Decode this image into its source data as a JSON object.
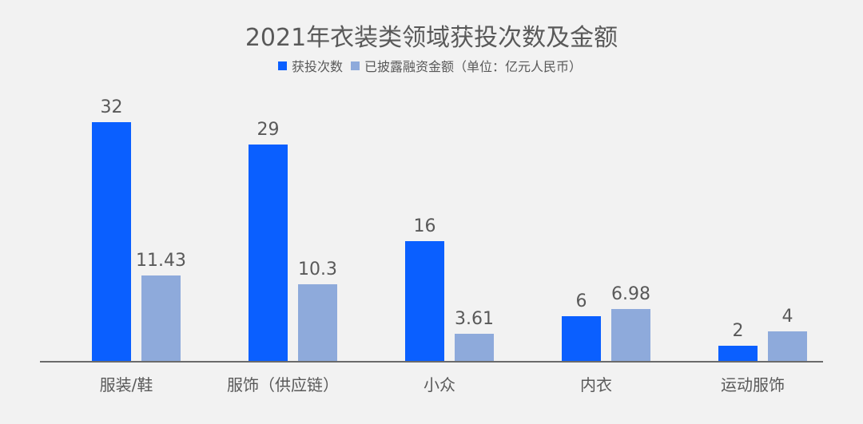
{
  "title": "2021年衣装类领域获投次数及金额",
  "legend": [
    {
      "label": "获投次数",
      "color": "#0a5fff"
    },
    {
      "label": "已披露融资金额（单位：亿元人民币）",
      "color": "#8eaadb"
    }
  ],
  "chart_data": {
    "type": "bar",
    "title": "2021年衣装类领域获投次数及金额",
    "xlabel": "",
    "ylabel": "",
    "categories": [
      "服装/鞋",
      "服饰（供应链）",
      "小众",
      "内衣",
      "运动服饰"
    ],
    "series": [
      {
        "name": "获投次数",
        "color": "#0a5fff",
        "values": [
          32,
          29,
          16,
          6,
          2
        ]
      },
      {
        "name": "已披露融资金额（单位：亿元人民币）",
        "color": "#8eaadb",
        "values": [
          11.43,
          10.3,
          3.61,
          6.98,
          4
        ]
      }
    ],
    "value_labels": [
      [
        "32",
        "29",
        "16",
        "6",
        "2"
      ],
      [
        "11.43",
        "10.3",
        "3.61",
        "6.98",
        "4"
      ]
    ],
    "grid": false,
    "legend_position": "top",
    "ylim": [
      0,
      35
    ]
  }
}
